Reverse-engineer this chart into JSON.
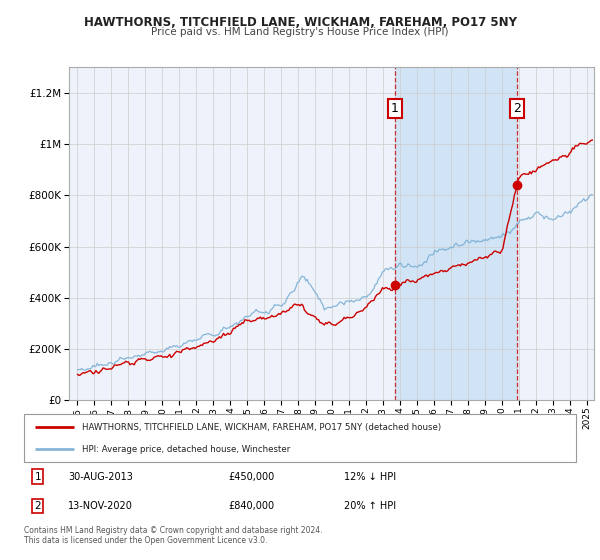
{
  "title": "HAWTHORNS, TITCHFIELD LANE, WICKHAM, FAREHAM, PO17 5NY",
  "subtitle": "Price paid vs. HM Land Registry's House Price Index (HPI)",
  "legend_line1": "HAWTHORNS, TITCHFIELD LANE, WICKHAM, FAREHAM, PO17 5NY (detached house)",
  "legend_line2": "HPI: Average price, detached house, Winchester",
  "annotation1_date": "30-AUG-2013",
  "annotation1_price": "£450,000",
  "annotation1_pct": "12% ↓ HPI",
  "annotation2_date": "13-NOV-2020",
  "annotation2_price": "£840,000",
  "annotation2_pct": "20% ↑ HPI",
  "footnote1": "Contains HM Land Registry data © Crown copyright and database right 2024.",
  "footnote2": "This data is licensed under the Open Government Licence v3.0.",
  "red_color": "#cc0000",
  "blue_color": "#7bafd4",
  "background_color": "#ffffff",
  "plot_bg_color": "#eef2fa",
  "shade_bg_color": "#d0e4f5",
  "grid_color": "#cccccc",
  "sale1_t": 2013.67,
  "sale1_price": 450000,
  "sale2_t": 2020.87,
  "sale2_price": 840000,
  "ylim_max": 1300000,
  "xlim_min": 1994.5,
  "xlim_max": 2025.4
}
